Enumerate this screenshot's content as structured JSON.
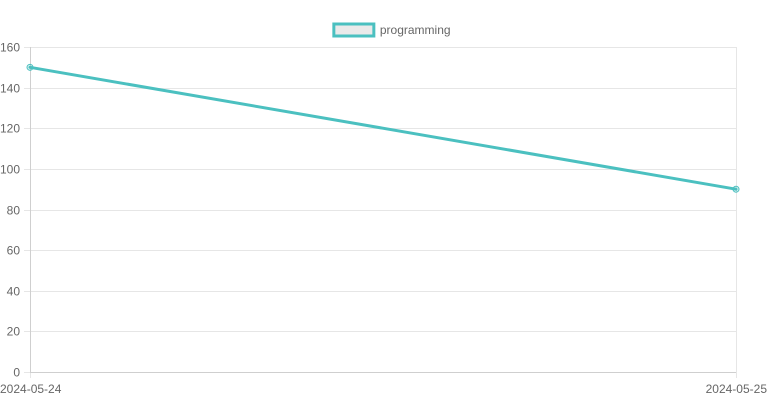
{
  "chart_data": {
    "type": "line",
    "x": [
      "2024-05-24",
      "2024-05-25"
    ],
    "series": [
      {
        "name": "programming",
        "values": [
          150,
          90
        ],
        "color": "#4bc0c0"
      }
    ],
    "ylim": [
      0,
      160
    ],
    "yticks": [
      0,
      20,
      40,
      60,
      80,
      100,
      120,
      140,
      160
    ],
    "legend_position": "top-center",
    "grid": true,
    "grid_color": "#e6e6e6",
    "axis_color": "#cfcfcf",
    "text_color": "#666666",
    "title": "",
    "xlabel": "",
    "ylabel": ""
  }
}
